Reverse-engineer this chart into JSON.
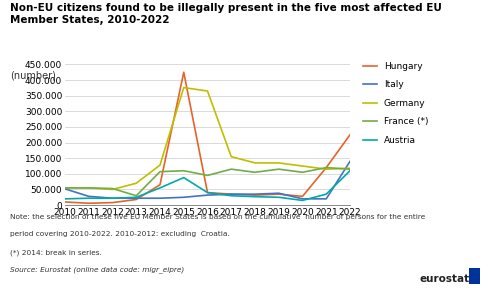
{
  "title": "Non-EU citizens found to be illegally present in the five most affected EU\nMember States, 2010-2022",
  "subtitle": "(number)",
  "years": [
    2010,
    2011,
    2012,
    2013,
    2014,
    2015,
    2016,
    2017,
    2018,
    2019,
    2020,
    2021,
    2022
  ],
  "series": {
    "Hungary": {
      "color": "#E8622A",
      "data": [
        10000,
        6000,
        8000,
        18000,
        65000,
        425000,
        40000,
        35000,
        32000,
        35000,
        28000,
        120000,
        225000
      ]
    },
    "Italy": {
      "color": "#4472C4",
      "data": [
        52000,
        28000,
        22000,
        22000,
        22000,
        25000,
        32000,
        35000,
        35000,
        38000,
        20000,
        20000,
        140000
      ]
    },
    "Germany": {
      "color": "#BFBF00",
      "data": [
        55000,
        55000,
        50000,
        70000,
        128000,
        376000,
        365000,
        155000,
        135000,
        135000,
        125000,
        115000,
        118000
      ]
    },
    "France (*)": {
      "color": "#70AD47",
      "data": [
        55000,
        55000,
        53000,
        30000,
        107000,
        110000,
        95000,
        115000,
        105000,
        115000,
        105000,
        120000,
        115000
      ]
    },
    "Austria": {
      "color": "#00AAAA",
      "data": [
        20000,
        22000,
        22000,
        25000,
        55000,
        88000,
        40000,
        30000,
        27000,
        25000,
        15000,
        35000,
        110000
      ]
    }
  },
  "ylim": [
    0,
    450000
  ],
  "yticks": [
    0,
    50000,
    100000,
    150000,
    200000,
    250000,
    300000,
    350000,
    400000,
    450000
  ],
  "note1": "Note: the selection of these five EU Member States is based on the cumulative  number of persons for the entire",
  "note2": "period covering 2010-2022. 2010-2012: excluding  Croatia.",
  "note3": "(*) 2014: break in series.",
  "note4": "Source: Eurostat (online data code: migr_eipre)",
  "background_color": "#ffffff",
  "legend_order": [
    "Hungary",
    "Italy",
    "Germany",
    "France (*)",
    "Austria"
  ]
}
